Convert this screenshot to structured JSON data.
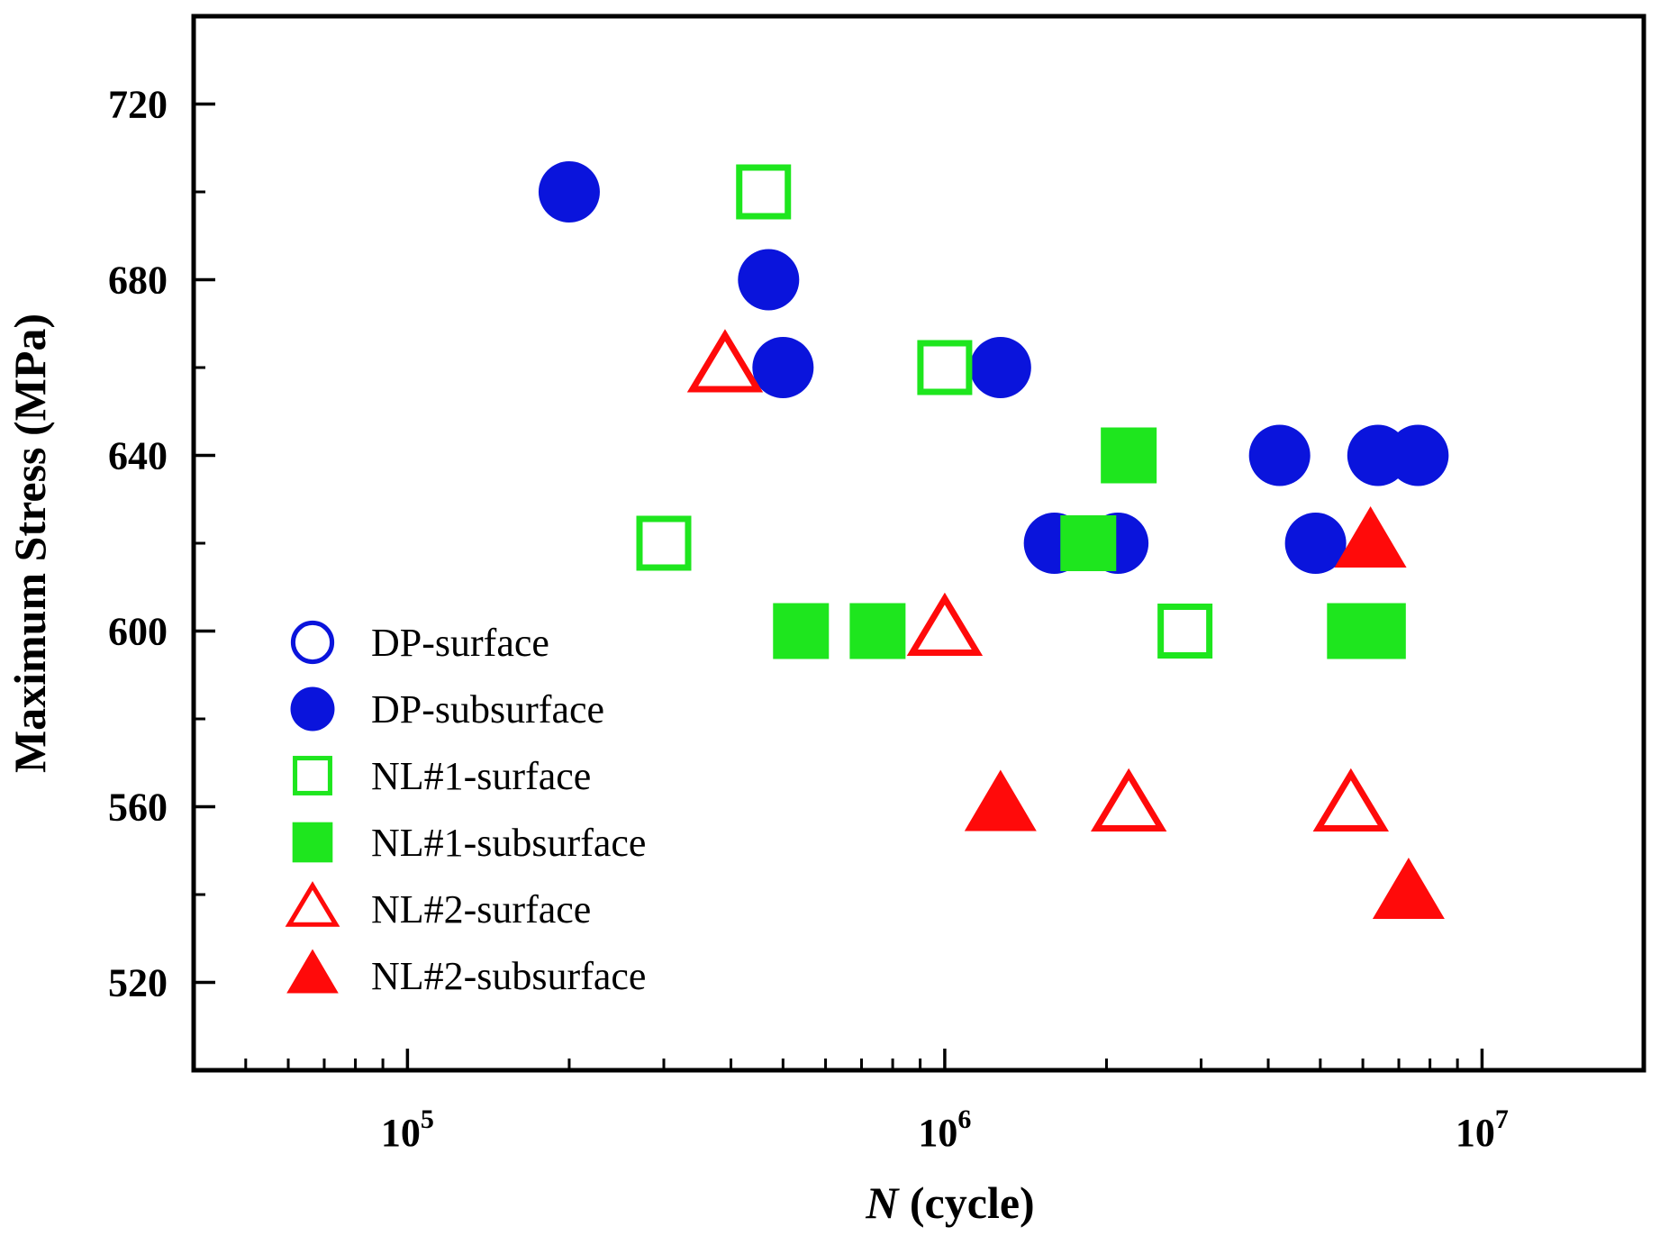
{
  "chart_data": {
    "type": "scatter",
    "title": "",
    "xlabel": {
      "italic": "N",
      "rest": " (cycle)"
    },
    "ylabel": "Maximum Stress (MPa)",
    "xscale": "log",
    "xlim": [
      40000,
      20000000
    ],
    "ylim": [
      500,
      740
    ],
    "x_ticks": [
      {
        "value": 100000,
        "base": "10",
        "exp": "5"
      },
      {
        "value": 1000000,
        "base": "10",
        "exp": "6"
      },
      {
        "value": 10000000,
        "base": "10",
        "exp": "7"
      }
    ],
    "y_ticks": [
      520,
      560,
      600,
      640,
      680,
      720
    ],
    "y_minor_ticks": [
      540,
      580,
      620,
      660,
      700
    ],
    "legend_position": "lower-left",
    "series": [
      {
        "name": "DP-surface",
        "marker": "circle",
        "filled": false,
        "color": "#0a14dc",
        "points": []
      },
      {
        "name": "DP-subsurface",
        "marker": "circle",
        "filled": true,
        "color": "#0a14dc",
        "points": [
          [
            200000,
            700
          ],
          [
            470000,
            680
          ],
          [
            500000,
            660
          ],
          [
            1270000,
            660
          ],
          [
            1600000,
            620
          ],
          [
            2100000,
            620
          ],
          [
            4200000,
            640
          ],
          [
            4900000,
            620
          ],
          [
            6400000,
            640
          ],
          [
            7600000,
            640
          ]
        ]
      },
      {
        "name": "NL#1-surface",
        "marker": "square",
        "filled": false,
        "color": "#1ee61e",
        "points": [
          [
            460000,
            700
          ],
          [
            300000,
            620
          ],
          [
            1000000,
            660
          ],
          [
            2800000,
            600
          ]
        ]
      },
      {
        "name": "NL#1-subsurface",
        "marker": "square",
        "filled": true,
        "color": "#1ee61e",
        "points": [
          [
            540000,
            600
          ],
          [
            750000,
            600
          ],
          [
            1850000,
            620
          ],
          [
            2200000,
            640
          ],
          [
            5800000,
            600
          ],
          [
            6400000,
            600
          ]
        ]
      },
      {
        "name": "NL#2-surface",
        "marker": "triangle",
        "filled": false,
        "color": "#ff0a0a",
        "points": [
          [
            390000,
            660
          ],
          [
            1000000,
            600
          ],
          [
            2200000,
            560
          ],
          [
            5700000,
            560
          ]
        ]
      },
      {
        "name": "NL#2-subsurface",
        "marker": "triangle",
        "filled": true,
        "color": "#ff0a0a",
        "points": [
          [
            1270000,
            560
          ],
          [
            6200000,
            620
          ],
          [
            7300000,
            540
          ]
        ]
      }
    ]
  }
}
